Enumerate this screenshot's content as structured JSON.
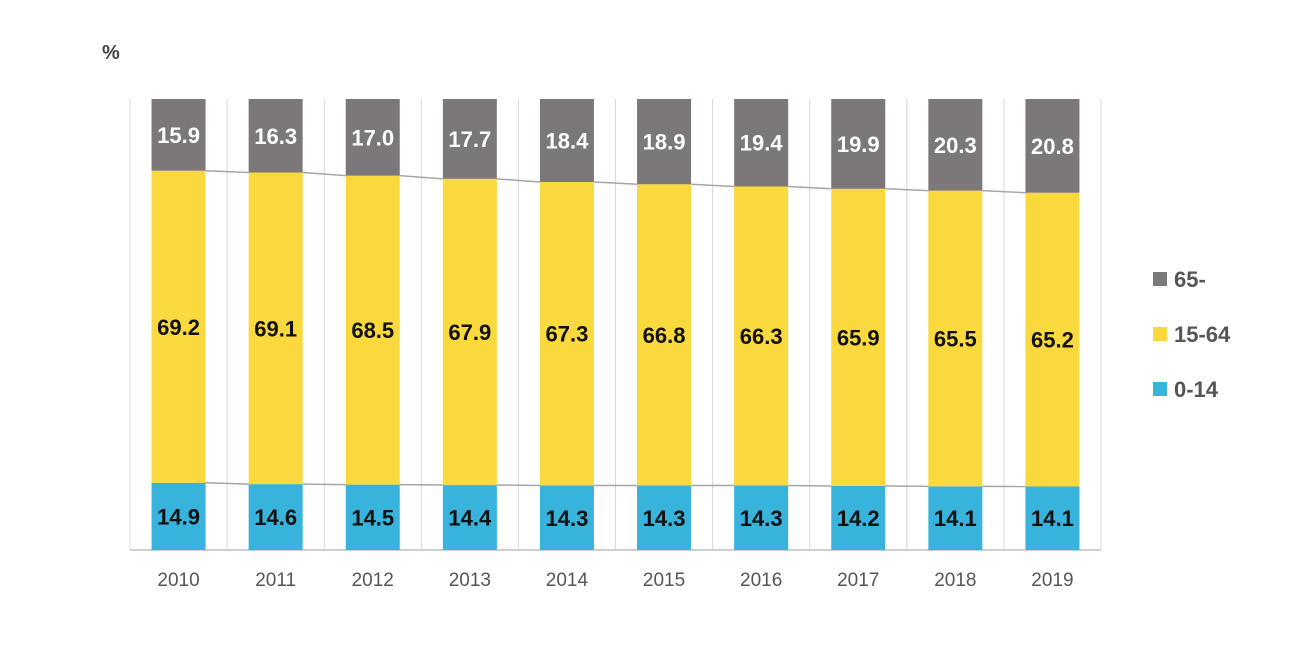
{
  "chart_data": {
    "type": "bar",
    "stacked": true,
    "percent_stacked": true,
    "unit": "%",
    "categories": [
      "2010",
      "2011",
      "2012",
      "2013",
      "2014",
      "2015",
      "2016",
      "2017",
      "2018",
      "2019"
    ],
    "series": [
      {
        "name": "0-14",
        "color": "#37b3dc",
        "label_color": "#111111",
        "values": [
          14.9,
          14.6,
          14.5,
          14.4,
          14.3,
          14.3,
          14.3,
          14.2,
          14.1,
          14.1
        ]
      },
      {
        "name": "15-64",
        "color": "#fad93e",
        "label_color": "#111111",
        "values": [
          69.2,
          69.1,
          68.5,
          67.9,
          67.3,
          66.8,
          66.3,
          65.9,
          65.5,
          65.2
        ]
      },
      {
        "name": "65-",
        "color": "#7c7778",
        "label_color": "#ffffff",
        "values": [
          15.9,
          16.3,
          17.0,
          17.7,
          18.4,
          18.9,
          19.4,
          19.9,
          20.3,
          20.8
        ]
      }
    ],
    "legend": [
      "65-",
      "15-64",
      "0-14"
    ],
    "legend_position": "right",
    "grid": false,
    "series_connector_lines": true
  }
}
